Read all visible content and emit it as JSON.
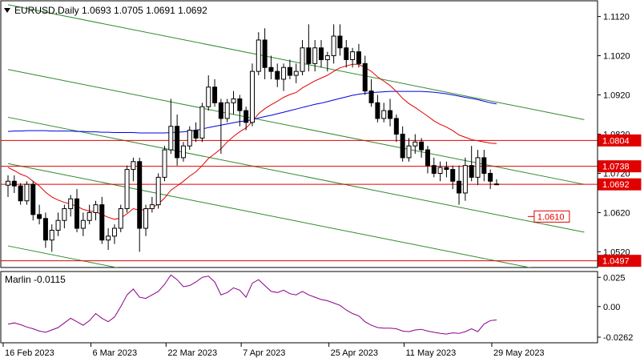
{
  "header": {
    "menu_icon": "triangle-down-icon",
    "symbol_line": "EURUSD,Daily  1.0693 1.0705 1.0691 1.0692"
  },
  "indicator": {
    "label": "Marlin -0.0115"
  },
  "price_labels": {
    "level_1": "1.0804",
    "level_2": "1.0738",
    "current": "1.0692",
    "target": "1.0610",
    "level_4": "1.0497"
  },
  "colors": {
    "bull": "#ffffff",
    "bear": "#000000",
    "ma_fast": "#e00000",
    "ma_slow": "#0000e0",
    "channel": "#2e8b2e",
    "levels": "#e00000",
    "oscillator": "#8b008b"
  },
  "chart_data": [
    {
      "type": "candlestick",
      "title": "EURUSD,Daily",
      "ohlc_header": [
        1.0693,
        1.0705,
        1.0691,
        1.0692
      ],
      "ylim": [
        1.048,
        1.116
      ],
      "y_ticks": [
        1.052,
        1.062,
        1.072,
        1.082,
        1.092,
        1.102,
        1.112
      ],
      "x_tick_labels": [
        "16 Feb 2023",
        "6 Mar 2023",
        "22 Mar 2023",
        "7 Apr 2023",
        "25 Apr 2023",
        "11 May 2023",
        "29 May 2023"
      ],
      "x_tick_index": [
        0,
        14,
        26,
        38,
        52,
        64,
        78
      ],
      "candles": [
        [
          1.069,
          1.0715,
          1.066,
          1.07
        ],
        [
          1.07,
          1.0715,
          1.067,
          1.0688
        ],
        [
          1.0688,
          1.0695,
          1.064,
          1.065
        ],
        [
          1.065,
          1.07,
          1.064,
          1.0692
        ],
        [
          1.0692,
          1.07,
          1.06,
          1.0615
        ],
        [
          1.0615,
          1.064,
          1.059,
          1.0605
        ],
        [
          1.0605,
          1.062,
          1.053,
          1.055
        ],
        [
          1.055,
          1.059,
          1.052,
          1.0575
        ],
        [
          1.0575,
          1.062,
          1.056,
          1.06
        ],
        [
          1.06,
          1.064,
          1.058,
          1.063
        ],
        [
          1.063,
          1.0665,
          1.061,
          1.0655
        ],
        [
          1.0655,
          1.068,
          1.057,
          1.058
        ],
        [
          1.058,
          1.062,
          1.056,
          1.06
        ],
        [
          1.06,
          1.064,
          1.059,
          1.062
        ],
        [
          1.062,
          1.065,
          1.06,
          1.064
        ],
        [
          1.064,
          1.066,
          1.054,
          1.055
        ],
        [
          1.055,
          1.058,
          1.0525,
          1.056
        ],
        [
          1.056,
          1.059,
          1.054,
          1.058
        ],
        [
          1.058,
          1.064,
          1.057,
          1.063
        ],
        [
          1.063,
          1.074,
          1.062,
          1.073
        ],
        [
          1.073,
          1.076,
          1.07,
          1.075
        ],
        [
          1.075,
          1.076,
          1.052,
          1.058
        ],
        [
          1.058,
          1.064,
          1.056,
          1.063
        ],
        [
          1.063,
          1.066,
          1.062,
          1.064
        ],
        [
          1.064,
          1.072,
          1.063,
          1.071
        ],
        [
          1.071,
          1.079,
          1.07,
          1.078
        ],
        [
          1.078,
          1.091,
          1.077,
          1.084
        ],
        [
          1.084,
          1.087,
          1.074,
          1.076
        ],
        [
          1.076,
          1.08,
          1.075,
          1.079
        ],
        [
          1.079,
          1.084,
          1.078,
          1.083
        ],
        [
          1.083,
          1.085,
          1.08,
          1.081
        ],
        [
          1.081,
          1.09,
          1.08,
          1.089
        ],
        [
          1.089,
          1.097,
          1.088,
          1.094
        ],
        [
          1.094,
          1.096,
          1.089,
          1.09
        ],
        [
          1.09,
          1.091,
          1.077,
          1.086
        ],
        [
          1.086,
          1.091,
          1.085,
          1.09
        ],
        [
          1.09,
          1.093,
          1.087,
          1.091
        ],
        [
          1.091,
          1.092,
          1.084,
          1.088
        ],
        [
          1.088,
          1.089,
          1.083,
          1.085
        ],
        [
          1.085,
          1.1,
          1.084,
          1.098
        ],
        [
          1.098,
          1.108,
          1.097,
          1.106
        ],
        [
          1.106,
          1.109,
          1.096,
          1.099
        ],
        [
          1.099,
          1.102,
          1.096,
          1.098
        ],
        [
          1.098,
          1.1,
          1.094,
          1.096
        ],
        [
          1.096,
          1.1,
          1.093,
          1.099
        ],
        [
          1.099,
          1.101,
          1.096,
          1.097
        ],
        [
          1.097,
          1.1,
          1.095,
          1.098
        ],
        [
          1.098,
          1.106,
          1.097,
          1.104
        ],
        [
          1.104,
          1.11,
          1.098,
          1.1
        ],
        [
          1.1,
          1.106,
          1.098,
          1.104
        ],
        [
          1.104,
          1.106,
          1.099,
          1.101
        ],
        [
          1.101,
          1.103,
          1.098,
          1.102
        ],
        [
          1.102,
          1.11,
          1.1,
          1.107
        ],
        [
          1.107,
          1.11,
          1.102,
          1.104
        ],
        [
          1.104,
          1.106,
          1.099,
          1.101
        ],
        [
          1.101,
          1.104,
          1.099,
          1.103
        ],
        [
          1.103,
          1.105,
          1.099,
          1.1
        ],
        [
          1.1,
          1.102,
          1.092,
          1.093
        ],
        [
          1.093,
          1.096,
          1.089,
          1.09
        ],
        [
          1.09,
          1.092,
          1.085,
          1.086
        ],
        [
          1.086,
          1.09,
          1.085,
          1.088
        ],
        [
          1.088,
          1.091,
          1.084,
          1.086
        ],
        [
          1.086,
          1.087,
          1.08,
          1.082
        ],
        [
          1.082,
          1.084,
          1.075,
          1.076
        ],
        [
          1.076,
          1.081,
          1.075,
          1.079
        ],
        [
          1.079,
          1.082,
          1.077,
          1.08
        ],
        [
          1.08,
          1.081,
          1.076,
          1.078
        ],
        [
          1.078,
          1.079,
          1.072,
          1.074
        ],
        [
          1.074,
          1.076,
          1.071,
          1.072
        ],
        [
          1.072,
          1.075,
          1.07,
          1.0735
        ],
        [
          1.0735,
          1.075,
          1.071,
          1.073
        ],
        [
          1.073,
          1.074,
          1.068,
          1.07
        ],
        [
          1.07,
          1.074,
          1.064,
          1.067
        ],
        [
          1.067,
          1.076,
          1.065,
          1.074
        ],
        [
          1.074,
          1.079,
          1.07,
          1.071
        ],
        [
          1.071,
          1.078,
          1.069,
          1.076
        ],
        [
          1.076,
          1.078,
          1.07,
          1.072
        ],
        [
          1.072,
          1.073,
          1.068,
          1.07
        ],
        [
          1.0693,
          1.0705,
          1.0691,
          1.0692
        ]
      ],
      "ma_fast": [
        1.0735,
        1.0727,
        1.0718,
        1.0712,
        1.07,
        1.0688,
        1.0672,
        1.066,
        1.0652,
        1.0646,
        1.0642,
        1.0636,
        1.0628,
        1.0624,
        1.0622,
        1.0615,
        1.0608,
        1.0603,
        1.0606,
        1.0617,
        1.063,
        1.0626,
        1.0628,
        1.0632,
        1.0642,
        1.0657,
        1.0677,
        1.0688,
        1.07,
        1.0713,
        1.0724,
        1.074,
        1.0758,
        1.077,
        1.0783,
        1.08,
        1.0814,
        1.0826,
        1.0836,
        1.0852,
        1.0872,
        1.0885,
        1.0895,
        1.0904,
        1.0914,
        1.0921,
        1.0926,
        1.0938,
        1.0947,
        1.0956,
        1.0963,
        1.097,
        1.098,
        1.0989,
        1.0994,
        1.0998,
        1.0998,
        1.099,
        1.098,
        1.0966,
        1.0955,
        1.0944,
        1.0929,
        1.0911,
        1.0898,
        1.0888,
        1.0877,
        1.0866,
        1.0854,
        1.0845,
        1.0838,
        1.0829,
        1.0818,
        1.0812,
        1.0806,
        1.0803,
        1.08,
        1.0797,
        1.0796
      ],
      "ma_slow": [
        1.0827,
        1.0828,
        1.0828,
        1.0829,
        1.0829,
        1.0829,
        1.0829,
        1.0828,
        1.0828,
        1.0828,
        1.0828,
        1.0827,
        1.0827,
        1.0826,
        1.0826,
        1.0825,
        1.0825,
        1.0824,
        1.0824,
        1.0824,
        1.0824,
        1.0823,
        1.0823,
        1.0823,
        1.0823,
        1.0823,
        1.0824,
        1.0825,
        1.0826,
        1.0828,
        1.083,
        1.0833,
        1.0837,
        1.084,
        1.0843,
        1.0846,
        1.0849,
        1.0852,
        1.0854,
        1.0857,
        1.0861,
        1.0865,
        1.0868,
        1.0872,
        1.0876,
        1.088,
        1.0884,
        1.0888,
        1.0892,
        1.0896,
        1.0899,
        1.0903,
        1.0907,
        1.0911,
        1.0915,
        1.0919,
        1.0922,
        1.0924,
        1.0926,
        1.0927,
        1.0928,
        1.0929,
        1.0929,
        1.0929,
        1.0929,
        1.0929,
        1.0929,
        1.0928,
        1.0927,
        1.0925,
        1.0923,
        1.092,
        1.0917,
        1.0914,
        1.0911,
        1.0908,
        1.0904,
        1.09,
        1.0897
      ],
      "horizontal_levels": [
        1.0804,
        1.0738,
        1.0692,
        1.0497
      ],
      "target_label_value": 1.061,
      "channel_lines": [
        {
          "from": [
            0,
            1.115
          ],
          "to": [
            92,
            1.0857
          ]
        },
        {
          "from": [
            0,
            1.0985
          ],
          "to": [
            92,
            1.0692
          ]
        },
        {
          "from": [
            0,
            1.0863
          ],
          "to": [
            92,
            1.057
          ]
        },
        {
          "from": [
            0,
            1.0745
          ],
          "to": [
            92,
            1.0452
          ]
        },
        {
          "from": [
            0,
            1.0535
          ],
          "to": [
            92,
            1.0242
          ]
        }
      ]
    },
    {
      "type": "line",
      "title": "Marlin -0.0115",
      "ylim": [
        -0.031,
        0.03
      ],
      "y_ticks": [
        0.025,
        0.0,
        -0.0262
      ],
      "values": [
        -0.015,
        -0.014,
        -0.0155,
        -0.0175,
        -0.019,
        -0.021,
        -0.022,
        -0.02,
        -0.018,
        -0.014,
        -0.01,
        -0.013,
        -0.016,
        -0.012,
        -0.006,
        -0.01,
        -0.013,
        -0.009,
        0.0,
        0.01,
        0.015,
        0.008,
        0.007,
        0.01,
        0.013,
        0.019,
        0.027,
        0.023,
        0.017,
        0.018,
        0.021,
        0.025,
        0.026,
        0.021,
        0.01,
        0.012,
        0.016,
        0.014,
        0.008,
        0.02,
        0.023,
        0.018,
        0.013,
        0.012,
        0.014,
        0.011,
        0.01,
        0.013,
        0.01,
        0.008,
        0.006,
        0.005,
        0.003,
        0.001,
        -0.003,
        -0.006,
        -0.008,
        -0.013,
        -0.016,
        -0.018,
        -0.0185,
        -0.0185,
        -0.019,
        -0.021,
        -0.0215,
        -0.02,
        -0.0195,
        -0.021,
        -0.022,
        -0.023,
        -0.0235,
        -0.0225,
        -0.023,
        -0.0215,
        -0.019,
        -0.0215,
        -0.015,
        -0.012,
        -0.0115
      ]
    }
  ]
}
